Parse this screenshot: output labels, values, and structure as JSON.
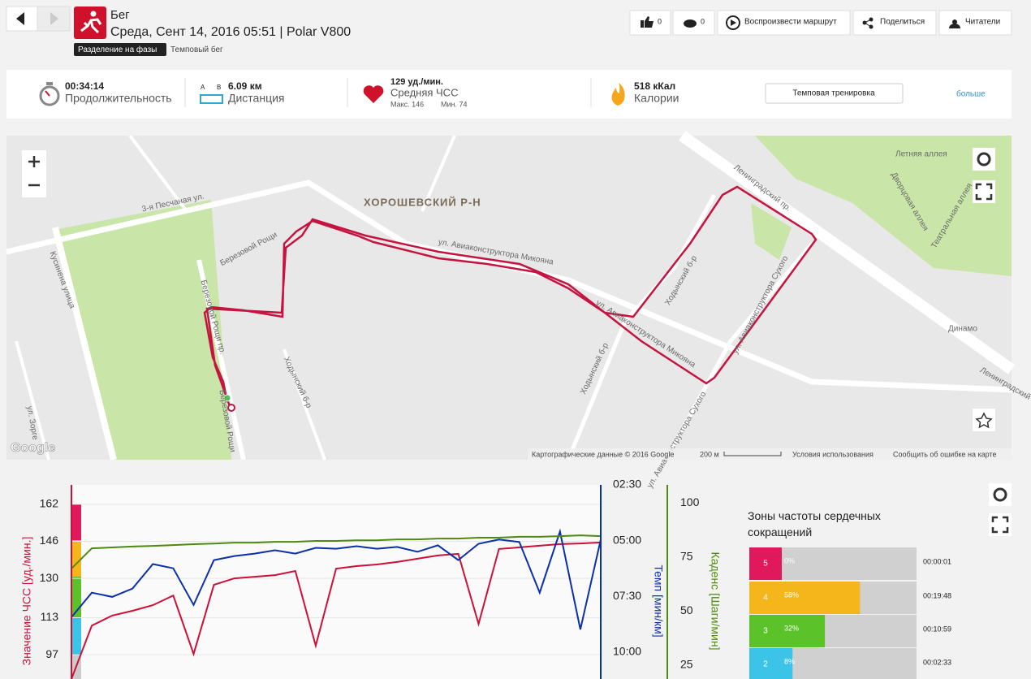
{
  "header": {
    "activity": "Бег",
    "subtitle": "Среда, Сент 14, 2016 05:51 | Polar V800",
    "phase_badge": "Разделение на фазы",
    "training_type": "Темповый бег"
  },
  "actions": [
    {
      "label": "0"
    },
    {
      "label": "0"
    },
    {
      "label": "Воспроизвести маршрут"
    },
    {
      "label": "Поделиться"
    },
    {
      "label": "Читатели"
    }
  ],
  "summary": {
    "duration": {
      "value": "00:34:14",
      "label": "Продолжительность"
    },
    "distance": {
      "value": "6.09 км",
      "label": "Дистанция",
      "a": "А",
      "b": "В"
    },
    "heart_rate": {
      "value": "129 уд./мин.",
      "label": "Средняя ЧСС",
      "max": "Макс. 146",
      "min": "Мин. 74"
    },
    "calories": {
      "value": "518 кКал",
      "label": "Калории"
    },
    "training_button": "Темповая тренировка",
    "more": "больше"
  },
  "map": {
    "district": "ХОРОШЕВСКИЙ Р-Н",
    "labels": [
      "3-я Песчаная ул.",
      "Березовой Рощи",
      "Березовой Рощи пр.",
      "Березовой Рощи",
      "ул. Авиаконструктора Микояна",
      "ул. Авиаконструктора Микояна",
      "Ходынский б-р",
      "Ходынский б-р",
      "Ходынский б-р",
      "Ленинградский пр.",
      "Ленинградский пр.",
      "ул. Авиаконструктора Сухого",
      "ул. Авиаконструктора Сухого",
      "Летняя аллея",
      "Дворцовая аллея",
      "Театральная аллея",
      "Кусинена улица",
      "ул. Зорге",
      "Динамо"
    ],
    "google": "Google",
    "attribution": "Картографические данные © 2016 Google",
    "scale": "200 м",
    "terms": "Условия использования",
    "report": "Сообщить об ошибке на карте"
  },
  "chart_data": {
    "type": "line",
    "y_label": "Значение ЧСС [уд./мин.]",
    "y2_label": "Темп [мин/км]",
    "y3_label": "Каденс [Шаги/мин]",
    "ylim": [
      86.5,
      170.4
    ],
    "yticks": [
      97,
      113,
      130,
      146,
      162
    ],
    "y2lim": [
      11.2,
      2.5
    ],
    "y2ticks": [
      {
        "value": 2.5,
        "label": "02:30"
      },
      {
        "value": 5,
        "label": "05:00"
      },
      {
        "value": 7.5,
        "label": "07:30"
      },
      {
        "value": 10,
        "label": "10:00"
      }
    ],
    "y3lim": [
      18.6,
      108.3
    ],
    "y3ticks": [
      25,
      50,
      75,
      100
    ],
    "grid": true,
    "series": [
      {
        "name": "ЧСС",
        "color": "#cc1038",
        "values": [
          86.5,
          109.6,
          113.9,
          116,
          118.4,
          122.6,
          97.3,
          127.2,
          130,
          130.7,
          131.4,
          133.2,
          100.9,
          134.2,
          135.3,
          136,
          137.1,
          138.5,
          139.9,
          140.6,
          110.3,
          142.7,
          143.4,
          144.1,
          144.8,
          145.1,
          145.5
        ]
      },
      {
        "name": "Темп",
        "color": "#0b2fa8",
        "axis": "y2",
        "values": [
          8.43,
          7.33,
          7.52,
          7.15,
          6.05,
          6.24,
          7.88,
          5.87,
          5.69,
          5.58,
          5.43,
          5.58,
          5.32,
          5.36,
          5.25,
          5.36,
          5.28,
          5.5,
          5.21,
          5.87,
          5.14,
          4.95,
          5.06,
          7.33,
          4.59,
          8.98,
          4.95
        ]
      },
      {
        "name": "Каденс",
        "color": "#4f8a10",
        "axis": "y3",
        "values": [
          69.6,
          79,
          79.4,
          79.8,
          80.1,
          80.5,
          80.9,
          81.2,
          81.6,
          81.6,
          82,
          82,
          82.4,
          82.4,
          82.7,
          82.7,
          83.1,
          83.1,
          83.5,
          83.5,
          83.9,
          83.9,
          84.3,
          84.3,
          84.6,
          85,
          84.6
        ]
      }
    ]
  },
  "zones": {
    "title": "Зоны частоты сердечных сокращений",
    "rows": [
      {
        "zone": "5",
        "percent": 0,
        "percent_label": "0%",
        "time": "00:00:01",
        "color": "#e0195c"
      },
      {
        "zone": "4",
        "percent": 58,
        "percent_label": "58%",
        "time": "00:19:48",
        "color": "#f4b61a"
      },
      {
        "zone": "3",
        "percent": 32,
        "percent_label": "32%",
        "time": "00:10:59",
        "color": "#5cc22a"
      },
      {
        "zone": "2",
        "percent": 8,
        "percent_label": "8%",
        "time": "00:02:33",
        "color": "#3cc4e8"
      }
    ]
  }
}
